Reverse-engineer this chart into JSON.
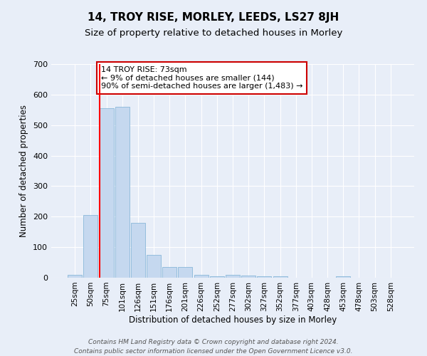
{
  "title": "14, TROY RISE, MORLEY, LEEDS, LS27 8JH",
  "subtitle": "Size of property relative to detached houses in Morley",
  "xlabel": "Distribution of detached houses by size in Morley",
  "ylabel": "Number of detached properties",
  "bar_labels": [
    "25sqm",
    "50sqm",
    "75sqm",
    "101sqm",
    "126sqm",
    "151sqm",
    "176sqm",
    "201sqm",
    "226sqm",
    "252sqm",
    "277sqm",
    "302sqm",
    "327sqm",
    "352sqm",
    "377sqm",
    "403sqm",
    "428sqm",
    "453sqm",
    "478sqm",
    "503sqm",
    "528sqm"
  ],
  "bar_values": [
    10,
    205,
    555,
    560,
    180,
    75,
    35,
    35,
    10,
    5,
    10,
    8,
    5,
    5,
    0,
    0,
    0,
    5,
    0,
    0,
    0
  ],
  "bar_color": "#c5d8ef",
  "bar_edge_color": "#7aafd4",
  "background_color": "#e8eef8",
  "grid_color": "#ffffff",
  "red_line_index": 2,
  "annotation_text": "14 TROY RISE: 73sqm\n← 9% of detached houses are smaller (144)\n90% of semi-detached houses are larger (1,483) →",
  "annotation_box_color": "#ffffff",
  "annotation_box_edge_color": "#cc0000",
  "ylim": [
    0,
    700
  ],
  "yticks": [
    0,
    100,
    200,
    300,
    400,
    500,
    600,
    700
  ],
  "footer_line1": "Contains HM Land Registry data © Crown copyright and database right 2024.",
  "footer_line2": "Contains public sector information licensed under the Open Government Licence v3.0.",
  "title_fontsize": 11,
  "subtitle_fontsize": 9.5,
  "tick_fontsize": 7.5,
  "axis_label_fontsize": 8.5
}
